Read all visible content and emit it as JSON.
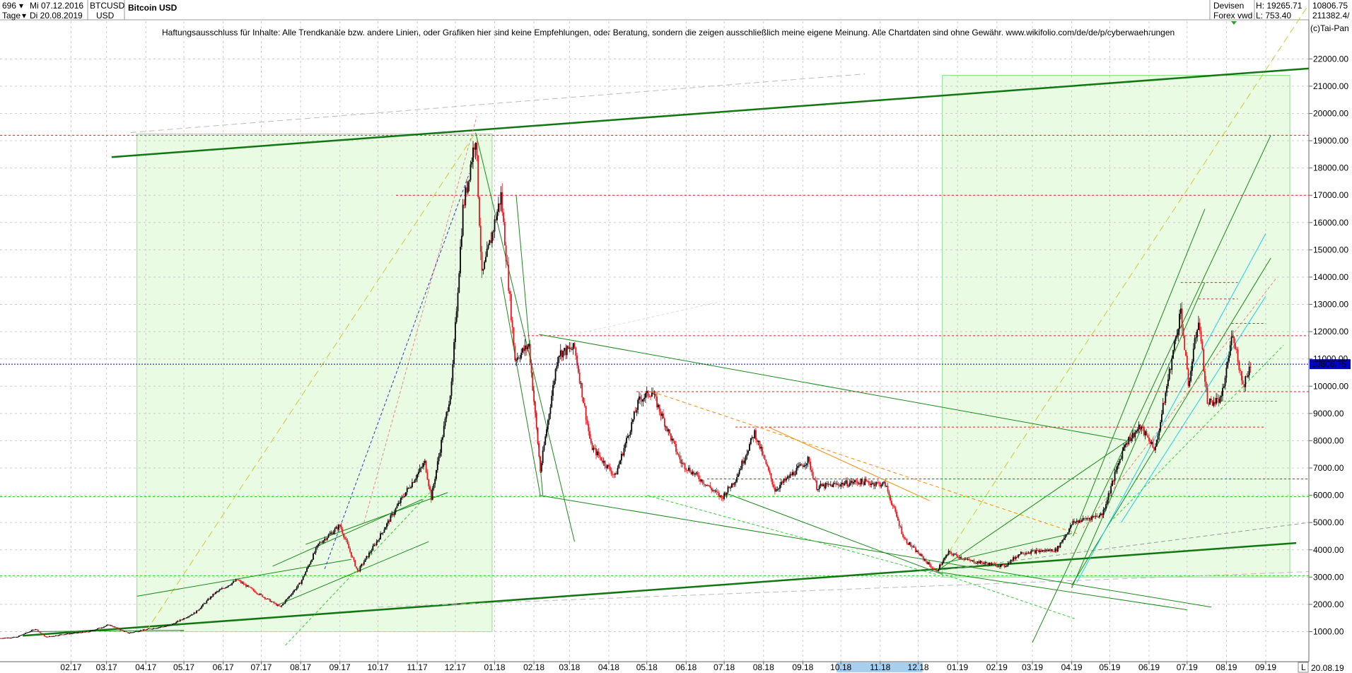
{
  "header": {
    "number": "696",
    "start_date": "Mi 07.12.2016",
    "end_date": "Di 20.08.2019",
    "interval": "Tage",
    "symbol": "BTCUSD",
    "currency": "USD",
    "title": "Bitcoin USD",
    "market1": "Devisen",
    "market2": "Forex vwd",
    "high": "H: 19265.71",
    "low": "L: 753.40",
    "last": "10806.75",
    "volume": "211382.4/",
    "copyright": "(c)Tai-Pan",
    "disclaimer": "Haftungsausschluss für Inhalte: Alle Trendkanäle bzw. andere Linien, oder Grafiken hier sind keine Empfehlungen, oder Beratung, sondern die zeigen ausschließlich meine eigene Meinung. Alle Chartdaten sind ohne Gewähr.  www.wikifolio.com/de/de/p/cyberwaehrungen",
    "scroll_right_label": "L",
    "last_date_label": "20.08.19"
  },
  "colors": {
    "candle_up": "#000000",
    "candle_down": "#e8141c",
    "trend_green": "#1a8a1a",
    "last_price": "#0000cc",
    "hline_red": "#dd2222",
    "hline_green": "#22cc22",
    "zone_fill": "#e9fbe3",
    "zone_stroke": "#8fe08f"
  },
  "chart_data": {
    "type": "candlestick",
    "title": "Bitcoin USD",
    "ylim": [
      500,
      23000
    ],
    "yticks": [
      1000,
      2000,
      3000,
      4000,
      5000,
      6000,
      7000,
      8000,
      9000,
      10000,
      11000,
      12000,
      13000,
      14000,
      15000,
      16000,
      17000,
      18000,
      19000,
      20000,
      21000,
      22000
    ],
    "ytick_labels": [
      "1000.00",
      "2000.00",
      "3000.00",
      "4000.00",
      "5000.00",
      "6000.00",
      "7000.00",
      "8000.00",
      "9000.00",
      "10000.00",
      "11000.00",
      "12000.00",
      "13000.00",
      "14000.00",
      "15000.00",
      "16000.00",
      "17000.00",
      "18000.00",
      "19000.00",
      "20000.00",
      "21000.00",
      "22000.00"
    ],
    "xlim": [
      "2016-12-07",
      "2019-10-05"
    ],
    "x_ticks": [
      {
        "date": "2017-02-01",
        "label": "02.17"
      },
      {
        "date": "2017-03-01",
        "label": "03.17"
      },
      {
        "date": "2017-04-01",
        "label": "04.17"
      },
      {
        "date": "2017-05-01",
        "label": "05.17"
      },
      {
        "date": "2017-06-01",
        "label": "06.17"
      },
      {
        "date": "2017-07-01",
        "label": "07.17"
      },
      {
        "date": "2017-08-01",
        "label": "08.17"
      },
      {
        "date": "2017-09-01",
        "label": "09.17"
      },
      {
        "date": "2017-10-01",
        "label": "10.17"
      },
      {
        "date": "2017-11-01",
        "label": "11.17"
      },
      {
        "date": "2017-12-01",
        "label": "12.17"
      },
      {
        "date": "2018-01-01",
        "label": "01.18"
      },
      {
        "date": "2018-02-01",
        "label": "02.18"
      },
      {
        "date": "2018-03-01",
        "label": "03.18"
      },
      {
        "date": "2018-04-01",
        "label": "04.18"
      },
      {
        "date": "2018-05-01",
        "label": "05.18"
      },
      {
        "date": "2018-06-01",
        "label": "06.18"
      },
      {
        "date": "2018-07-01",
        "label": "07.18"
      },
      {
        "date": "2018-08-01",
        "label": "08.18"
      },
      {
        "date": "2018-09-01",
        "label": "09.18"
      },
      {
        "date": "2018-10-01",
        "label": "10.18"
      },
      {
        "date": "2018-11-01",
        "label": "11.18"
      },
      {
        "date": "2018-12-01",
        "label": "12.18"
      },
      {
        "date": "2019-01-01",
        "label": "01.19"
      },
      {
        "date": "2019-02-01",
        "label": "02.19"
      },
      {
        "date": "2019-03-01",
        "label": "03.19"
      },
      {
        "date": "2019-04-01",
        "label": "04.19"
      },
      {
        "date": "2019-05-01",
        "label": "05.19"
      },
      {
        "date": "2019-06-01",
        "label": "06.19"
      },
      {
        "date": "2019-07-01",
        "label": "07.19"
      },
      {
        "date": "2019-08-01",
        "label": "08.19"
      },
      {
        "date": "2019-09-01",
        "label": "09.19"
      }
    ],
    "highlighted_x_range": [
      "2018-10-01",
      "2018-12-01"
    ],
    "last_value": 10806.75,
    "price_path": [
      [
        "2016-12-07",
        760
      ],
      [
        "2016-12-20",
        800
      ],
      [
        "2017-01-04",
        1100
      ],
      [
        "2017-01-12",
        800
      ],
      [
        "2017-01-25",
        900
      ],
      [
        "2017-02-15",
        1000
      ],
      [
        "2017-03-03",
        1250
      ],
      [
        "2017-03-18",
        950
      ],
      [
        "2017-04-01",
        1080
      ],
      [
        "2017-04-20",
        1230
      ],
      [
        "2017-05-10",
        1700
      ],
      [
        "2017-05-25",
        2400
      ],
      [
        "2017-06-12",
        2900
      ],
      [
        "2017-06-25",
        2500
      ],
      [
        "2017-07-16",
        1900
      ],
      [
        "2017-08-01",
        2800
      ],
      [
        "2017-08-15",
        4200
      ],
      [
        "2017-09-01",
        4900
      ],
      [
        "2017-09-15",
        3200
      ],
      [
        "2017-09-30",
        4300
      ],
      [
        "2017-10-20",
        5900
      ],
      [
        "2017-11-07",
        7200
      ],
      [
        "2017-11-12",
        5900
      ],
      [
        "2017-11-28",
        10000
      ],
      [
        "2017-12-07",
        16500
      ],
      [
        "2017-12-17",
        19200
      ],
      [
        "2017-12-22",
        14000
      ],
      [
        "2018-01-06",
        17000
      ],
      [
        "2018-01-17",
        11000
      ],
      [
        "2018-01-28",
        11500
      ],
      [
        "2018-02-06",
        6900
      ],
      [
        "2018-02-20",
        11200
      ],
      [
        "2018-03-05",
        11400
      ],
      [
        "2018-03-18",
        7800
      ],
      [
        "2018-04-06",
        6700
      ],
      [
        "2018-04-25",
        9500
      ],
      [
        "2018-05-05",
        9800
      ],
      [
        "2018-05-28",
        7200
      ],
      [
        "2018-06-12",
        6600
      ],
      [
        "2018-06-29",
        5900
      ],
      [
        "2018-07-10",
        6600
      ],
      [
        "2018-07-25",
        8300
      ],
      [
        "2018-08-10",
        6200
      ],
      [
        "2018-09-05",
        7300
      ],
      [
        "2018-09-12",
        6300
      ],
      [
        "2018-10-15",
        6500
      ],
      [
        "2018-11-05",
        6400
      ],
      [
        "2018-11-20",
        4400
      ],
      [
        "2018-12-15",
        3200
      ],
      [
        "2018-12-25",
        3900
      ],
      [
        "2019-01-10",
        3600
      ],
      [
        "2019-02-07",
        3400
      ],
      [
        "2019-02-20",
        3900
      ],
      [
        "2019-03-20",
        4000
      ],
      [
        "2019-04-02",
        5000
      ],
      [
        "2019-04-25",
        5300
      ],
      [
        "2019-05-13",
        7900
      ],
      [
        "2019-05-25",
        8500
      ],
      [
        "2019-06-06",
        7700
      ],
      [
        "2019-06-26",
        12800
      ],
      [
        "2019-07-02",
        10000
      ],
      [
        "2019-07-10",
        12500
      ],
      [
        "2019-07-17",
        9400
      ],
      [
        "2019-07-28",
        9500
      ],
      [
        "2019-08-06",
        12000
      ],
      [
        "2019-08-14",
        10000
      ],
      [
        "2019-08-20",
        10806
      ]
    ]
  }
}
